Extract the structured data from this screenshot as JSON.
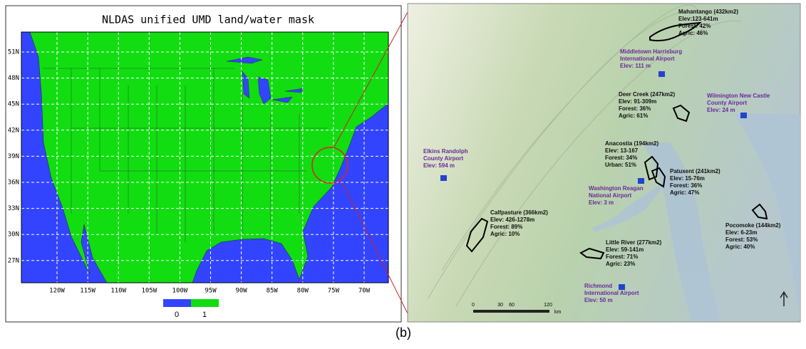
{
  "left_map": {
    "title": "NLDAS unified UMD land/water mask",
    "lat_labels": [
      "51N",
      "48N",
      "45N",
      "42N",
      "39N",
      "36N",
      "33N",
      "30N",
      "27N"
    ],
    "lon_labels": [
      "120W",
      "115W",
      "110W",
      "105W",
      "100W",
      "95W",
      "90W",
      "85W",
      "80W",
      "75W",
      "70W"
    ],
    "legend": [
      {
        "label": "0",
        "color": "#3344ff"
      },
      {
        "label": "1",
        "color": "#11dd11"
      }
    ]
  },
  "right_map": {
    "watersheds": [
      {
        "lines": [
          "Mahantango (432km2)",
          "Elev:123-641m",
          "Forest: 42%",
          "Agric: 46%"
        ]
      },
      {
        "lines": [
          "Deer Creek (247km2)",
          "Elev: 91-309m",
          "Forest: 36%",
          "Agric: 61%"
        ]
      },
      {
        "lines": [
          "Anacostia (194km2)",
          "Elev: 13-167",
          "Forest: 34%",
          "Urban: 51%"
        ]
      },
      {
        "lines": [
          "Patuxent (241km2)",
          "Elev: 15-76m",
          "Forest: 36%",
          "Agric: 47%"
        ]
      },
      {
        "lines": [
          "Calfpasture (366km2)",
          "Elev: 426-1278m",
          "Forest: 89%",
          "Agric: 10%"
        ]
      },
      {
        "lines": [
          "Pocomoke (144km2)",
          "Elev: 6-23m",
          "Forest: 53%",
          "Agric: 40%"
        ]
      },
      {
        "lines": [
          "Little River (277km2)",
          "Elev: 59-141m",
          "Forest: 71%",
          "Agric: 23%"
        ]
      }
    ],
    "airports": [
      {
        "lines": [
          "Middletown Harrisburg",
          "International Airport",
          "Elev: 111 m"
        ]
      },
      {
        "lines": [
          "Wilmington New Castle",
          "County Airport",
          "Elev: 24 m"
        ]
      },
      {
        "lines": [
          "Elkins Randolph",
          "County Airport",
          "Elev: 594 m"
        ]
      },
      {
        "lines": [
          "Washington Reagan",
          "National Airport",
          "Elev: 3 m"
        ]
      },
      {
        "lines": [
          "Richmond",
          "International Airport",
          "Elev: 50 m"
        ]
      }
    ],
    "scale": {
      "ticks": [
        "0",
        "30",
        "60",
        "120"
      ],
      "unit": "km"
    }
  },
  "caption": "(b)"
}
